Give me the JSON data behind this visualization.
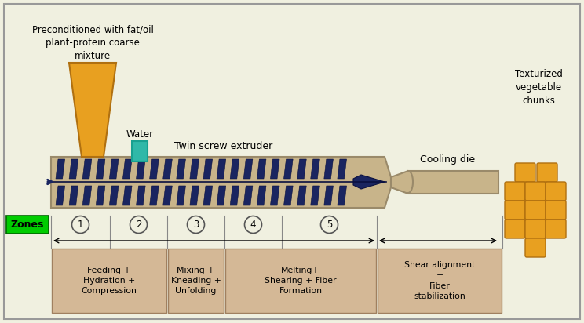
{
  "bg_color": "#f0f0e0",
  "border_color": "#888888",
  "extruder_color": "#c8b48a",
  "screw_color": "#1a2560",
  "funnel_color": "#e8a020",
  "water_color": "#30b8a8",
  "zone_label_bg": "#00cc00",
  "box_color": "#d4b896",
  "preconditioned_text": "Preconditioned with fat/oil\nplant-protein coarse\nmixture",
  "water_text": "Water",
  "extruder_text": "Twin screw extruder",
  "cooling_text": "Cooling die",
  "texturized_text": "Texturized\nvegetable\nchunks",
  "zones_label": "Zones",
  "zone_numbers": [
    "1",
    "2",
    "3",
    "4",
    "5"
  ],
  "box_labels": [
    "Feeding +\nHydration +\nCompression",
    "Mixing +\nKneading +\nUnfolding",
    "Melting+\nShearing + Fiber\nFormation",
    "Shear alignment\n+\nFiber\nstabilization"
  ]
}
